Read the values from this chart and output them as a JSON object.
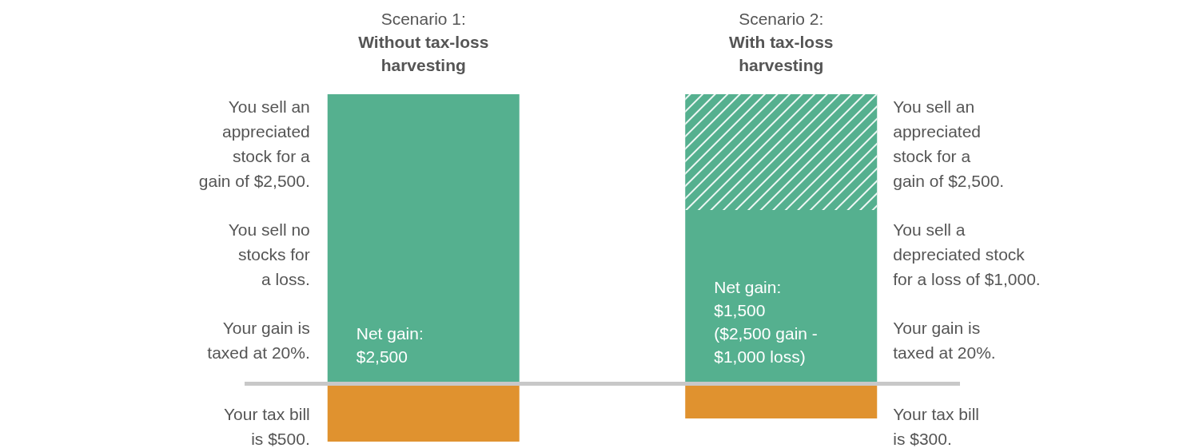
{
  "chart_data": {
    "type": "bar",
    "stacked": true,
    "categories": [
      "Scenario 1:\nWithout tax-loss\nharvesting",
      "Scenario 2:\nWith tax-loss\nharvesting"
    ],
    "series": [
      {
        "color": "#55b08f",
        "values": [
          2500,
          1500
        ],
        "value_labels": [
          "Net gain:\n$2,500",
          "Net gain:\n$1,500\n($2,500 gain -\n$1,000 loss)"
        ]
      },
      {
        "color": "#55b08f",
        "values": [
          null,
          1000
        ]
      },
      {
        "color": "#e0922f",
        "values": [
          -500,
          -300
        ]
      }
    ],
    "ref_lines": [
      {
        "axis": "y",
        "value": 0,
        "color": "#c8c8c8"
      }
    ],
    "annotations": [
      "You sell an\nappreciated\nstock for a\ngain of $2,500.",
      "You sell no\nstocks for\na loss.",
      "Your gain is\ntaxed at 20%.",
      "Your tax bill\nis $500.",
      "You sell an\nappreciated\nstock for a\ngain of $2,500.",
      "You sell a\ndepreciated stock\nfor a loss of $1,000.",
      "Your gain is\ntaxed at 20%.",
      "Your tax bill\nis $300."
    ],
    "grid": false
  }
}
